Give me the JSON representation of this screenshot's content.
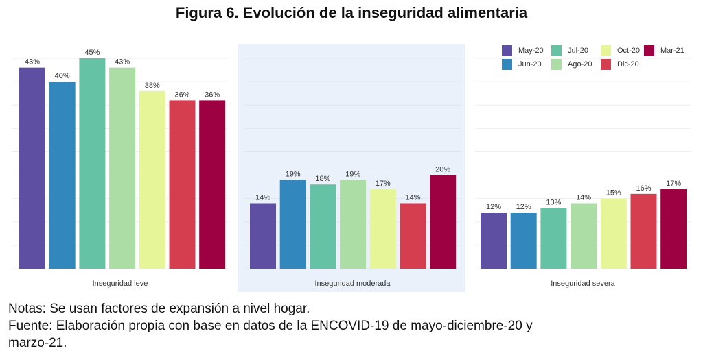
{
  "figure": {
    "title": "Figura 6. Evolución de la inseguridad alimentaria",
    "notes": [
      "Notas: Se usan factores de expansión a nivel hogar.",
      "Fuente: Elaboración propia con base en datos de la ENCOVID-19 de mayo-diciembre-20 y",
      "marzo-21."
    ]
  },
  "chart_data": {
    "type": "bar",
    "title": "Figura 6. Evolución de la inseguridad alimentaria",
    "xlabel": "",
    "ylabel": "",
    "ylim": [
      0,
      45
    ],
    "grid": true,
    "legend_position": "top-right",
    "series_names": [
      "May-20",
      "Jun-20",
      "Jul-20",
      "Ago-20",
      "Oct-20",
      "Dic-20",
      "Mar-21"
    ],
    "colors": [
      "#5e4fa2",
      "#3288bd",
      "#66c2a5",
      "#abdda4",
      "#e6f598",
      "#d53e4f",
      "#9e0142"
    ],
    "categories": [
      "Inseguridad leve",
      "Inseguridad moderada",
      "Inseguridad severa"
    ],
    "panels": [
      {
        "label": "Inseguridad leve",
        "values": [
          43,
          40,
          45,
          43,
          38,
          36,
          36
        ],
        "labels": [
          "43%",
          "40%",
          "45%",
          "43%",
          "38%",
          "36%",
          "36%"
        ]
      },
      {
        "label": "Inseguridad moderada",
        "values": [
          14,
          19,
          18,
          19,
          17,
          14,
          20
        ],
        "labels": [
          "14%",
          "19%",
          "18%",
          "19%",
          "17%",
          "14%",
          "20%"
        ]
      },
      {
        "label": "Inseguridad severa",
        "values": [
          12,
          12,
          13,
          14,
          15,
          16,
          17
        ],
        "labels": [
          "12%",
          "12%",
          "13%",
          "14%",
          "15%",
          "16%",
          "17%"
        ]
      }
    ]
  }
}
